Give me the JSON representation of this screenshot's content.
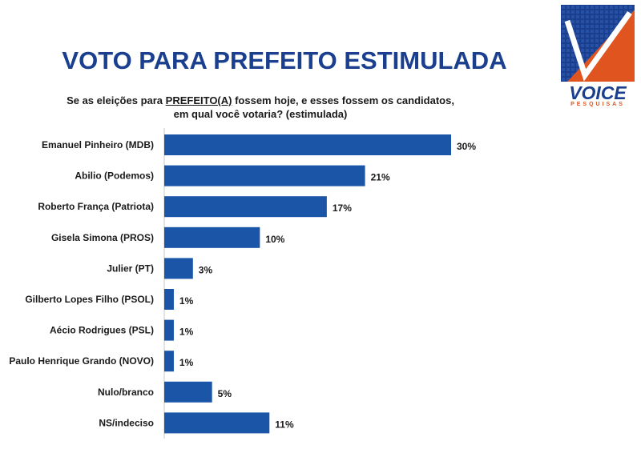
{
  "header": {
    "title": "VOTO PARA PREFEITO ESTIMULADA",
    "question_prefix": "Se as eleições para ",
    "question_emph": "PREFEITO(A)",
    "question_suffix": " fossem hoje, e esses fossem os candidatos, em qual você votaria? (estimulada)"
  },
  "logo": {
    "wordmark": "VOICE",
    "subtitle": "PESQUISAS",
    "colors": {
      "blue": "#1a3f8f",
      "orange": "#e0541f"
    }
  },
  "chart_data": {
    "type": "bar",
    "orientation": "horizontal",
    "categories": [
      "Emanuel Pinheiro (MDB)",
      "Abilio (Podemos)",
      "Roberto França (Patriota)",
      "Gisela Simona (PROS)",
      "Julier (PT)",
      "Gilberto Lopes Filho (PSOL)",
      "Aécio Rodrigues (PSL)",
      "Paulo Henrique Grando (NOVO)",
      "Nulo/branco",
      "NS/indeciso"
    ],
    "values": [
      30,
      21,
      17,
      10,
      3,
      1,
      1,
      1,
      5,
      11
    ],
    "value_labels": [
      "30%",
      "21%",
      "17%",
      "10%",
      "3%",
      "1%",
      "1%",
      "1%",
      "5%",
      "11%"
    ],
    "xlim": [
      0,
      30
    ],
    "grid": false,
    "bar_color": "#1a55a8"
  }
}
